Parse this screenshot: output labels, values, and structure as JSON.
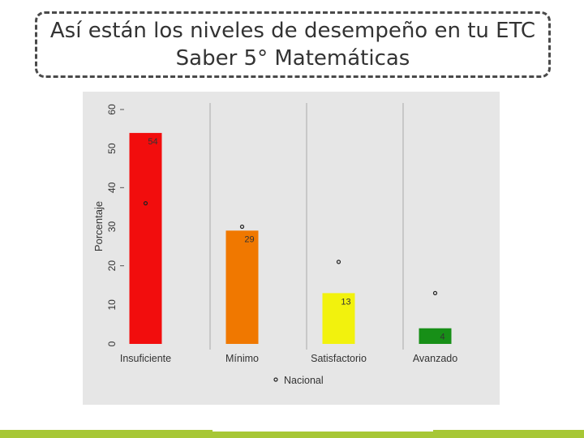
{
  "title": {
    "line1": "Así están los niveles de desempeño en tu ETC",
    "line2": "Saber 5° Matemáticas"
  },
  "chart_data": {
    "type": "bar",
    "title": "Así están los niveles de desempeño en tu ETC Saber 5° Matemáticas",
    "xlabel": "",
    "ylabel": "Porcentaje",
    "ylim": [
      0,
      60
    ],
    "yticks": [
      "0",
      "10",
      "20",
      "30",
      "40",
      "50",
      "60"
    ],
    "categories": [
      "Insuficiente",
      "Mínimo",
      "Satisfactorio",
      "Avanzado"
    ],
    "values": [
      54,
      29,
      13,
      4
    ],
    "value_labels": [
      "54",
      "29",
      "13",
      "4"
    ],
    "bar_colors": [
      "#f20d0d",
      "#f07800",
      "#f2f20d",
      "#178f17"
    ],
    "series": [
      {
        "name": "ETC",
        "values": [
          54,
          29,
          13,
          4
        ]
      },
      {
        "name": "Nacional",
        "values": [
          36,
          30,
          21,
          13
        ]
      }
    ],
    "legend": {
      "label": "Nacional",
      "position": "bottom"
    },
    "grid": "vertical separators"
  },
  "colors": {
    "panel_bg": "#e6e6e6",
    "separator": "#b5b5b5",
    "footer": "#a7c736"
  }
}
